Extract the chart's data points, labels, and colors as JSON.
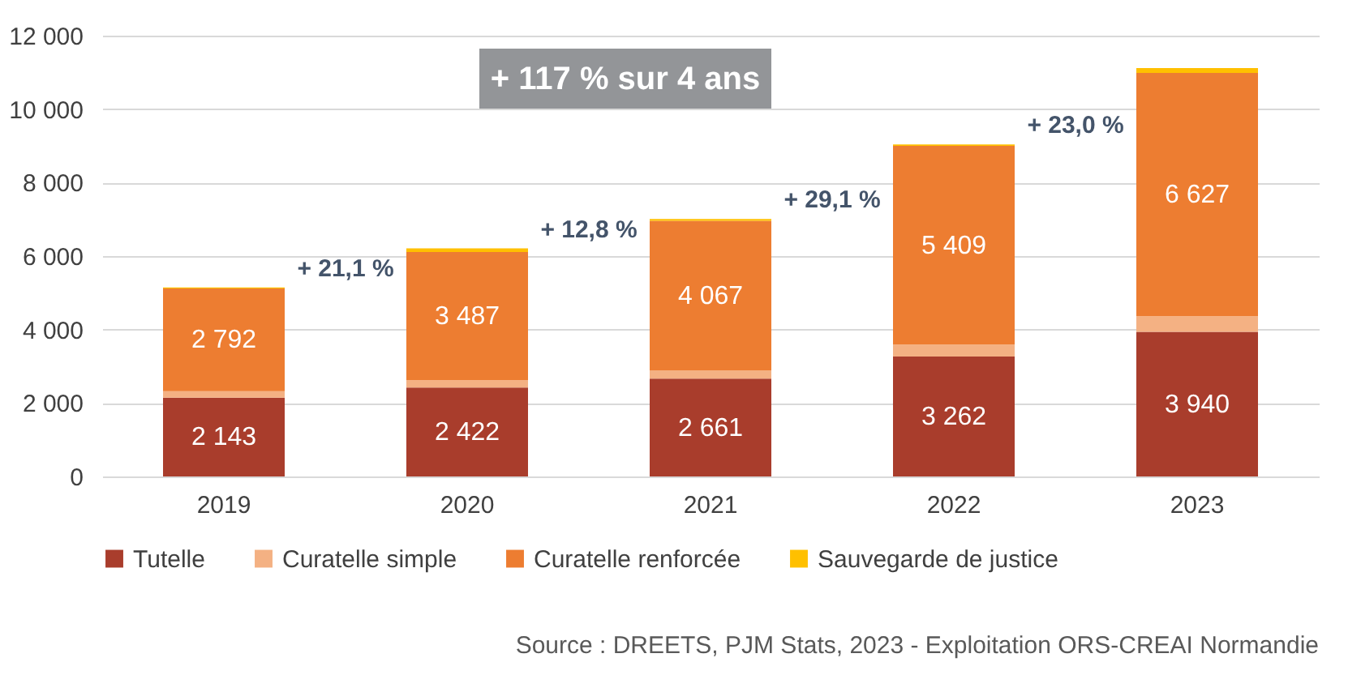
{
  "chart_data": {
    "type": "bar",
    "stacked": true,
    "categories": [
      "2019",
      "2020",
      "2021",
      "2022",
      "2023"
    ],
    "series": [
      {
        "name": "Tutelle",
        "color": "#a93d2c",
        "values": [
          2143,
          2422,
          2661,
          3262,
          3940
        ],
        "value_labels": [
          "2 143",
          "2 422",
          "2 661",
          "3 262",
          "3 940"
        ]
      },
      {
        "name": "Curatelle simple",
        "color": "#f4b183",
        "values": [
          180,
          200,
          230,
          330,
          420
        ]
      },
      {
        "name": "Curatelle renforcée",
        "color": "#ed7d31",
        "values": [
          2792,
          3487,
          4067,
          5409,
          6627
        ],
        "value_labels": [
          "2 792",
          "3 487",
          "4 067",
          "5 409",
          "6 627"
        ]
      },
      {
        "name": "Sauvegarde de justice",
        "color": "#ffc000",
        "values": [
          30,
          100,
          50,
          40,
          130
        ]
      }
    ],
    "ylim": [
      0,
      12000
    ],
    "yticks": [
      {
        "value": 0,
        "label": "0"
      },
      {
        "value": 2000,
        "label": "2 000"
      },
      {
        "value": 4000,
        "label": "4 000"
      },
      {
        "value": 6000,
        "label": "6 000"
      },
      {
        "value": 8000,
        "label": "8 000"
      },
      {
        "value": 10000,
        "label": "10 000"
      },
      {
        "value": 12000,
        "label": "12 000"
      }
    ],
    "grid": "y",
    "legend": "bottom",
    "annotations": [
      "+ 117 % sur 4 ans",
      "+ 21,1 %",
      "+ 12,8 %",
      "+ 29,1 %",
      "+ 23,0 %",
      "Source : DREETS, PJM Stats, 2023 - Exploitation ORS-CREAI Normandie"
    ]
  }
}
